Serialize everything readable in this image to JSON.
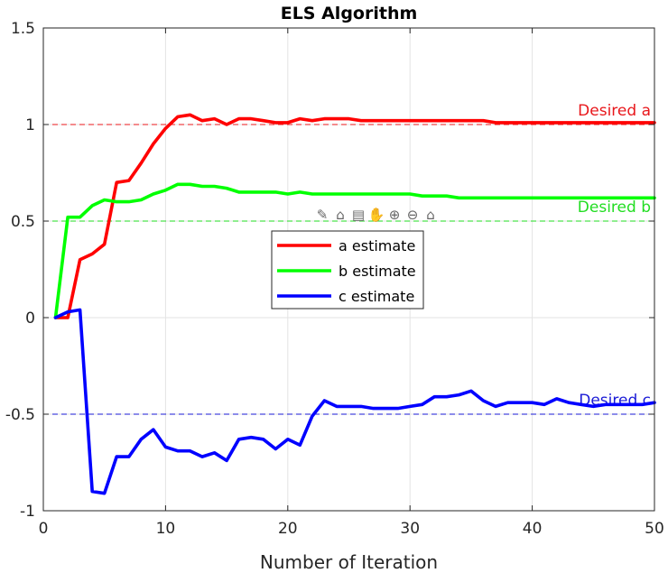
{
  "chart_data": {
    "type": "line",
    "title": "ELS Algorithm",
    "xlabel": "Number of Iteration",
    "ylabel": "",
    "xlim": [
      0,
      50
    ],
    "ylim": [
      -1,
      1.5
    ],
    "xticks": [
      0,
      10,
      20,
      30,
      40,
      50
    ],
    "xtick_labels": [
      "0",
      "10",
      "20",
      "30",
      "40",
      "50"
    ],
    "yticks": [
      -1,
      -0.5,
      0,
      0.5,
      1,
      1.5
    ],
    "ytick_labels": [
      "-1",
      "-0.5",
      "0",
      "0.5",
      "1",
      "1.5"
    ],
    "grid": true,
    "legend_position": "center",
    "x": [
      1,
      2,
      3,
      4,
      5,
      6,
      7,
      8,
      9,
      10,
      11,
      12,
      13,
      14,
      15,
      16,
      17,
      18,
      19,
      20,
      21,
      22,
      23,
      24,
      25,
      26,
      27,
      28,
      29,
      30,
      31,
      32,
      33,
      34,
      35,
      36,
      37,
      38,
      39,
      40,
      41,
      42,
      43,
      44,
      45,
      46,
      47,
      48,
      49,
      50
    ],
    "series": [
      {
        "name": "a estimate",
        "color": "#ff0000",
        "values": [
          0,
          0,
          0.3,
          0.33,
          0.38,
          0.7,
          0.71,
          0.8,
          0.9,
          0.98,
          1.04,
          1.05,
          1.02,
          1.03,
          1.0,
          1.03,
          1.03,
          1.02,
          1.01,
          1.01,
          1.03,
          1.02,
          1.03,
          1.03,
          1.03,
          1.02,
          1.02,
          1.02,
          1.02,
          1.02,
          1.02,
          1.02,
          1.02,
          1.02,
          1.02,
          1.02,
          1.01,
          1.01,
          1.01,
          1.01,
          1.01,
          1.01,
          1.01,
          1.01,
          1.01,
          1.01,
          1.01,
          1.01,
          1.01,
          1.01
        ]
      },
      {
        "name": "b estimate",
        "color": "#00ff00",
        "values": [
          0,
          0.52,
          0.52,
          0.58,
          0.61,
          0.6,
          0.6,
          0.61,
          0.64,
          0.66,
          0.69,
          0.69,
          0.68,
          0.68,
          0.67,
          0.65,
          0.65,
          0.65,
          0.65,
          0.64,
          0.65,
          0.64,
          0.64,
          0.64,
          0.64,
          0.64,
          0.64,
          0.64,
          0.64,
          0.64,
          0.63,
          0.63,
          0.63,
          0.62,
          0.62,
          0.62,
          0.62,
          0.62,
          0.62,
          0.62,
          0.62,
          0.62,
          0.62,
          0.62,
          0.62,
          0.62,
          0.62,
          0.62,
          0.62,
          0.62
        ]
      },
      {
        "name": "c estimate",
        "color": "#0000ff",
        "values": [
          0,
          0.03,
          0.04,
          -0.9,
          -0.91,
          -0.72,
          -0.72,
          -0.63,
          -0.58,
          -0.67,
          -0.69,
          -0.69,
          -0.72,
          -0.7,
          -0.74,
          -0.63,
          -0.62,
          -0.63,
          -0.68,
          -0.63,
          -0.66,
          -0.51,
          -0.43,
          -0.46,
          -0.46,
          -0.46,
          -0.47,
          -0.47,
          -0.47,
          -0.46,
          -0.45,
          -0.41,
          -0.41,
          -0.4,
          -0.38,
          -0.43,
          -0.46,
          -0.44,
          -0.44,
          -0.44,
          -0.45,
          -0.42,
          -0.44,
          -0.45,
          -0.46,
          -0.45,
          -0.45,
          -0.45,
          -0.45,
          -0.44
        ]
      }
    ],
    "reference_lines": [
      {
        "label": "Desired a",
        "value": 1,
        "color": "#e8171b"
      },
      {
        "label": "Desired b",
        "value": 0.5,
        "color": "#22dd22"
      },
      {
        "label": "Desired c",
        "value": -0.5,
        "color": "#1a1ad6"
      }
    ]
  },
  "toolbar": {
    "icons": [
      "pencil-icon",
      "brush-icon",
      "data-tip-icon",
      "pan-hand-icon",
      "zoom-in-icon",
      "zoom-out-icon",
      "home-icon"
    ],
    "glyphs": [
      "✎",
      "⌂",
      "▤",
      "✋",
      "⊕",
      "⊖",
      "⌂"
    ]
  }
}
